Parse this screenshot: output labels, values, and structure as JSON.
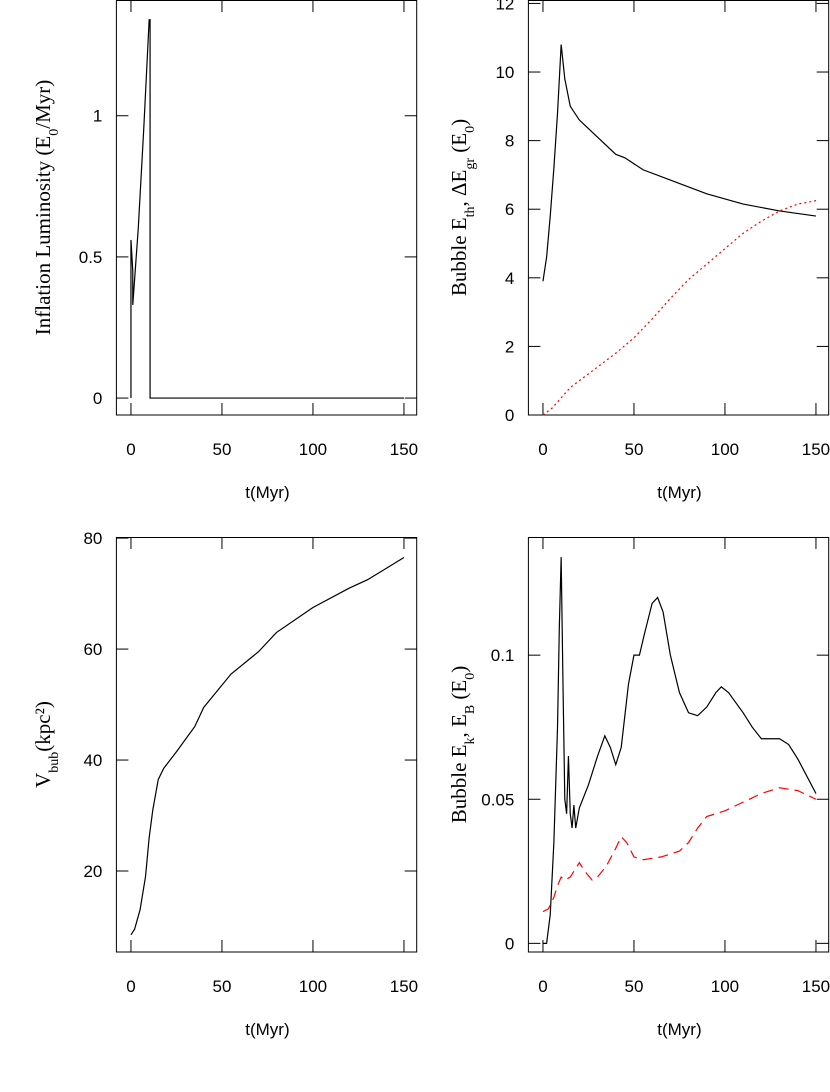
{
  "chart_data": [
    {
      "type": "line",
      "xlabel": "t(Myr)",
      "ylabel": [
        "Inflation Luminosity (E",
        "0",
        "/Myr)"
      ],
      "xlim": [
        -8,
        157
      ],
      "xticks": [
        0,
        50,
        100,
        150
      ],
      "ylim": [
        -0.06,
        1.41
      ],
      "yticks": [
        0,
        0.5,
        1
      ],
      "series": [
        {
          "color": "#000000",
          "dash": "solid",
          "x": [
            0,
            0,
            1,
            1,
            4,
            7,
            10,
            10.5,
            10.5,
            150
          ],
          "values": [
            0,
            0.56,
            0.45,
            0.33,
            0.6,
            0.95,
            1.34,
            1.34,
            0,
            0
          ]
        }
      ]
    },
    {
      "type": "line",
      "xlabel": "t(Myr)",
      "ylabel": [
        "Bubble E",
        "th",
        ", ΔE",
        "gr",
        " (E",
        "0",
        ")"
      ],
      "xlim": [
        -8,
        157
      ],
      "xticks": [
        0,
        50,
        100,
        150
      ],
      "ylim": [
        0,
        12.1
      ],
      "yticks": [
        0,
        2,
        4,
        6,
        8,
        10,
        12
      ],
      "series": [
        {
          "color": "#000000",
          "dash": "solid",
          "x": [
            0,
            2,
            4,
            6,
            8,
            10,
            12,
            15,
            20,
            30,
            40,
            45,
            55,
            70,
            90,
            110,
            130,
            150
          ],
          "values": [
            3.9,
            4.6,
            5.8,
            7.2,
            8.8,
            10.8,
            9.8,
            9.0,
            8.6,
            8.1,
            7.6,
            7.5,
            7.15,
            6.85,
            6.45,
            6.15,
            5.95,
            5.8
          ]
        },
        {
          "color": "#ff0000",
          "dash": "dotted",
          "x": [
            0,
            5,
            10,
            15,
            25,
            40,
            50,
            60,
            70,
            80,
            90,
            100,
            110,
            120,
            130,
            140,
            150
          ],
          "values": [
            0,
            0.2,
            0.5,
            0.8,
            1.2,
            1.8,
            2.25,
            2.8,
            3.4,
            3.95,
            4.4,
            4.85,
            5.3,
            5.65,
            5.95,
            6.15,
            6.25
          ]
        }
      ]
    },
    {
      "type": "line",
      "xlabel": "t(Myr)",
      "ylabel": [
        "V",
        "bub",
        "(kpc²)"
      ],
      "xlim": [
        -8,
        157
      ],
      "xticks": [
        0,
        50,
        100,
        150
      ],
      "ylim": [
        5.4,
        80.2
      ],
      "yticks": [
        20,
        40,
        60,
        80
      ],
      "series": [
        {
          "color": "#000000",
          "dash": "solid",
          "x": [
            0,
            2,
            5,
            8,
            10,
            12,
            15,
            18,
            25,
            35,
            40,
            45,
            55,
            70,
            80,
            100,
            120,
            130,
            150
          ],
          "values": [
            8.5,
            9.5,
            13,
            19,
            26,
            31,
            36.5,
            38.5,
            41.5,
            46,
            49.5,
            51.5,
            55.5,
            59.5,
            63,
            67.5,
            71,
            72.5,
            76.5
          ]
        }
      ]
    },
    {
      "type": "line",
      "xlabel": "t(Myr)",
      "ylabel": [
        "Bubble E",
        "k",
        ", E",
        "B",
        " (E",
        "0",
        ")"
      ],
      "xlim": [
        -8,
        157
      ],
      "xticks": [
        0,
        50,
        100,
        150
      ],
      "ylim": [
        -0.003,
        0.141
      ],
      "yticks": [
        0,
        0.05,
        0.1
      ],
      "series": [
        {
          "color": "#000000",
          "dash": "solid",
          "x": [
            0,
            2,
            4,
            6,
            8,
            9,
            10,
            11,
            12,
            13,
            14,
            15,
            16,
            17,
            18,
            20,
            25,
            30,
            34,
            37,
            40,
            43,
            47,
            50,
            53,
            56,
            60,
            63,
            66,
            70,
            75,
            80,
            85,
            90,
            95,
            98,
            102,
            110,
            115,
            120,
            130,
            135,
            140,
            145,
            150
          ],
          "values": [
            0,
            0,
            0.01,
            0.035,
            0.075,
            0.11,
            0.134,
            0.09,
            0.05,
            0.045,
            0.065,
            0.045,
            0.04,
            0.048,
            0.04,
            0.047,
            0.055,
            0.065,
            0.072,
            0.068,
            0.062,
            0.068,
            0.09,
            0.1,
            0.1,
            0.108,
            0.118,
            0.12,
            0.115,
            0.1,
            0.087,
            0.08,
            0.079,
            0.082,
            0.087,
            0.089,
            0.087,
            0.08,
            0.075,
            0.071,
            0.071,
            0.069,
            0.064,
            0.058,
            0.052
          ]
        },
        {
          "color": "#ff0000",
          "dash": "dashed",
          "x": [
            0,
            3,
            6,
            8,
            10,
            12,
            15,
            18,
            20,
            23,
            27,
            30,
            35,
            40,
            43,
            46,
            50,
            55,
            65,
            75,
            80,
            85,
            90,
            100,
            110,
            120,
            130,
            140,
            150
          ],
          "values": [
            0.011,
            0.012,
            0.016,
            0.02,
            0.023,
            0.022,
            0.023,
            0.026,
            0.028,
            0.025,
            0.022,
            0.023,
            0.027,
            0.033,
            0.037,
            0.035,
            0.03,
            0.029,
            0.03,
            0.032,
            0.035,
            0.04,
            0.044,
            0.046,
            0.049,
            0.052,
            0.054,
            0.053,
            0.05
          ]
        }
      ]
    }
  ]
}
